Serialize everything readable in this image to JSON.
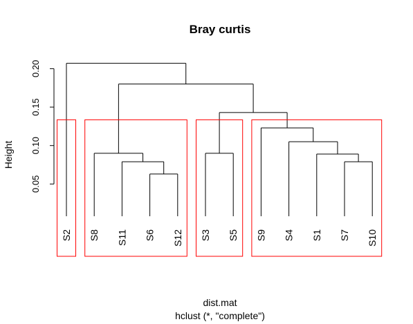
{
  "chart_data": {
    "type": "dendrogram",
    "title": "Bray curtis",
    "xlabel": "dist.mat",
    "sublabel": "hclust (*, \"complete\")",
    "ylabel": "Height",
    "yticks": [
      "0.05",
      "0.10",
      "0.15",
      "0.20"
    ],
    "leaf_order": [
      "S2",
      "S8",
      "S11",
      "S6",
      "S12",
      "S3",
      "S5",
      "S9",
      "S4",
      "S1",
      "S7",
      "S10"
    ],
    "merges": [
      {
        "left": "S7",
        "right": "S10",
        "height": 0.079
      },
      {
        "left": "S6",
        "right": "S12",
        "height": 0.063
      },
      {
        "left": "S11",
        "right": "(S6,S12)",
        "height": 0.079
      },
      {
        "left": "S1",
        "right": "(S7,S10)",
        "height": 0.089
      },
      {
        "left": "S8",
        "right": "(S11,S6,S12)",
        "height": 0.09
      },
      {
        "left": "S3",
        "right": "S5",
        "height": 0.09
      },
      {
        "left": "S4",
        "right": "(S1,S7,S10)",
        "height": 0.105
      },
      {
        "left": "S9",
        "right": "(S4,S1,S7,S10)",
        "height": 0.123
      },
      {
        "left": "(S3,S5)",
        "right": "(S9,S4,S1,S7,S10)",
        "height": 0.143
      },
      {
        "left": "(S8,S11,S6,S12)",
        "right": "(S3,S5,S9,S4,S1,S7,S10)",
        "height": 0.18
      },
      {
        "left": "S2",
        "right": "(all others)",
        "height": 0.207
      }
    ],
    "cluster_boxes": [
      [
        "S2"
      ],
      [
        "S8",
        "S11",
        "S6",
        "S12"
      ],
      [
        "S3",
        "S5"
      ],
      [
        "S9",
        "S4",
        "S1",
        "S7",
        "S10"
      ]
    ],
    "box_color": "#ff0000",
    "line_color": "#000000"
  }
}
